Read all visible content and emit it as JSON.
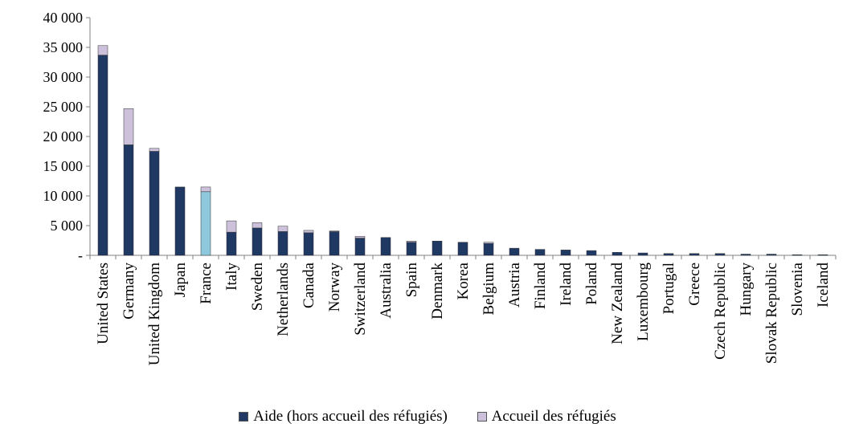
{
  "chart_data": {
    "type": "bar",
    "stacked": true,
    "title": "",
    "xlabel": "",
    "ylabel": "",
    "ylim": [
      0,
      40000
    ],
    "yticks": [
      0,
      5000,
      10000,
      15000,
      20000,
      25000,
      30000,
      35000,
      40000
    ],
    "ytick_labels": [
      "-",
      "5 000",
      "10 000",
      "15 000",
      "20 000",
      "25 000",
      "30 000",
      "35 000",
      "40 000"
    ],
    "grid": false,
    "legend_position": "bottom",
    "categories": [
      "United States",
      "Germany",
      "United Kingdom",
      "Japan",
      "France",
      "Italy",
      "Sweden",
      "Netherlands",
      "Canada",
      "Norway",
      "Switzerland",
      "Australia",
      "Spain",
      "Denmark",
      "Korea",
      "Belgium",
      "Austria",
      "Finland",
      "Ireland",
      "Poland",
      "New Zealand",
      "Luxembourg",
      "Portugal",
      "Greece",
      "Czech Republic",
      "Hungary",
      "Slovak Republic",
      "Slovenia",
      "Iceland"
    ],
    "series": [
      {
        "name": "Aide (hors accueil des réfugiés)",
        "color": "#1f3864",
        "values": [
          33700,
          18600,
          17500,
          11500,
          10700,
          3900,
          4600,
          4000,
          3800,
          4000,
          2900,
          3000,
          2200,
          2400,
          2200,
          2000,
          1200,
          1000,
          900,
          800,
          500,
          400,
          300,
          300,
          300,
          200,
          200,
          100,
          100
        ]
      },
      {
        "name": "Accueil des réfugiés",
        "color": "#ccc0da",
        "values": [
          1600,
          6100,
          500,
          0,
          800,
          1900,
          900,
          900,
          400,
          100,
          300,
          0,
          200,
          0,
          0,
          200,
          0,
          0,
          0,
          0,
          0,
          0,
          0,
          0,
          0,
          0,
          0,
          0,
          0
        ]
      }
    ],
    "highlight": {
      "category": "France",
      "color": "#8fc8dc"
    }
  }
}
